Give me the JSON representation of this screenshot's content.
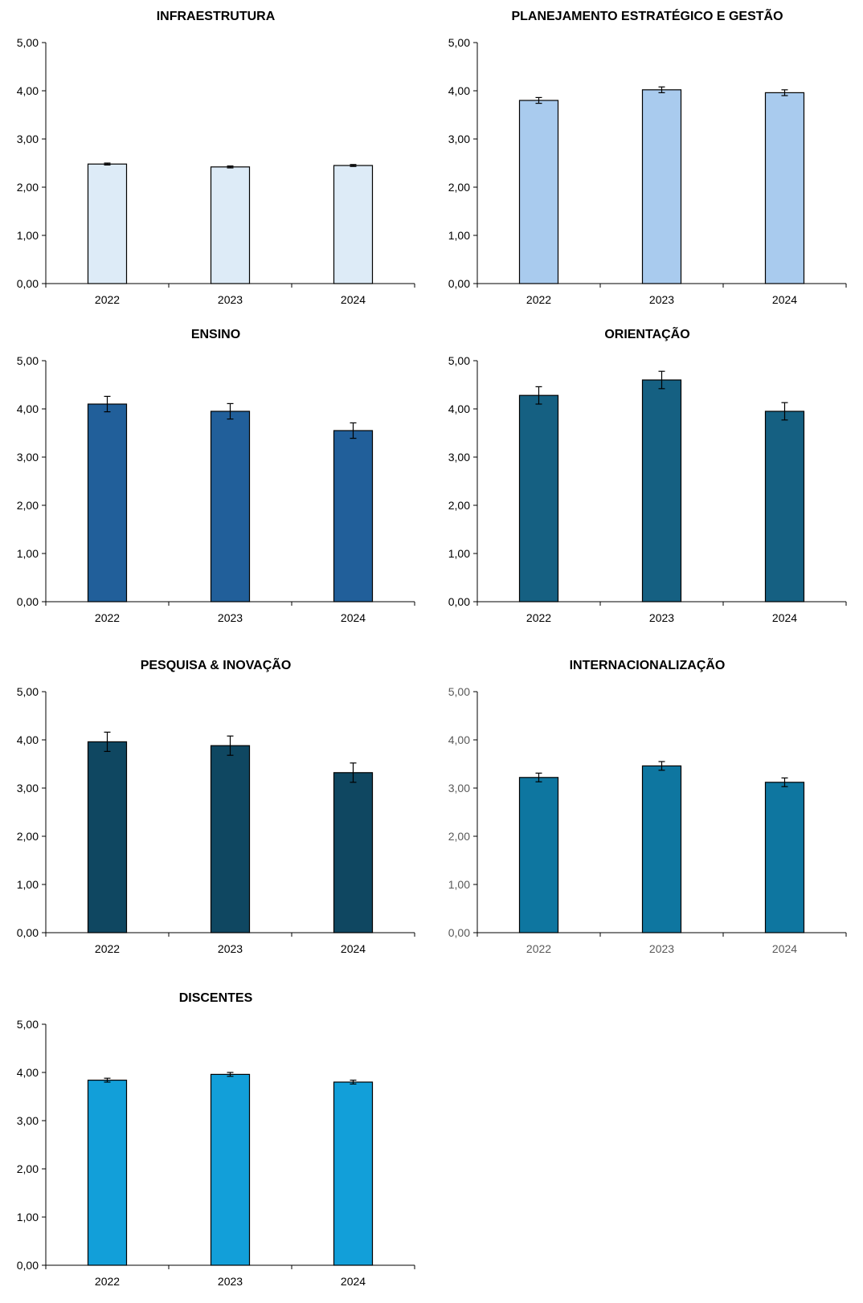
{
  "chart_data": [
    {
      "type": "bar",
      "title": "INFRAESTRUTURA",
      "categories": [
        "2022",
        "2023",
        "2024"
      ],
      "values": [
        2.48,
        2.42,
        2.45
      ],
      "errors": [
        0.02,
        0.02,
        0.02
      ],
      "ylim": [
        0,
        5
      ],
      "yticks": [
        "0,00",
        "1,00",
        "2,00",
        "3,00",
        "4,00",
        "5,00"
      ],
      "bar_color": "#DDEBF7",
      "tick_label_color": "#000000",
      "xlabel": "",
      "ylabel": "",
      "grid": false,
      "legend": "none"
    },
    {
      "type": "bar",
      "title": "PLANEJAMENTO ESTRATÉGICO E GESTÃO",
      "categories": [
        "2022",
        "2023",
        "2024"
      ],
      "values": [
        3.8,
        4.02,
        3.96
      ],
      "errors": [
        0.06,
        0.06,
        0.06
      ],
      "ylim": [
        0,
        5
      ],
      "yticks": [
        "0,00",
        "1,00",
        "2,00",
        "3,00",
        "4,00",
        "5,00"
      ],
      "bar_color": "#A9CBEE",
      "tick_label_color": "#000000",
      "xlabel": "",
      "ylabel": "",
      "grid": false,
      "legend": "none"
    },
    {
      "type": "bar",
      "title": "ENSINO",
      "categories": [
        "2022",
        "2023",
        "2024"
      ],
      "values": [
        4.1,
        3.95,
        3.55
      ],
      "errors": [
        0.16,
        0.16,
        0.16
      ],
      "ylim": [
        0,
        5
      ],
      "yticks": [
        "0,00",
        "1,00",
        "2,00",
        "3,00",
        "4,00",
        "5,00"
      ],
      "bar_color": "#215F9A",
      "tick_label_color": "#000000",
      "xlabel": "",
      "ylabel": "",
      "grid": false,
      "legend": "none"
    },
    {
      "type": "bar",
      "title": "ORIENTAÇÃO",
      "categories": [
        "2022",
        "2023",
        "2024"
      ],
      "values": [
        4.28,
        4.6,
        3.95
      ],
      "errors": [
        0.18,
        0.18,
        0.18
      ],
      "ylim": [
        0,
        5
      ],
      "yticks": [
        "0,00",
        "1,00",
        "2,00",
        "3,00",
        "4,00",
        "5,00"
      ],
      "bar_color": "#156082",
      "tick_label_color": "#000000",
      "xlabel": "",
      "ylabel": "",
      "grid": false,
      "legend": "none"
    },
    {
      "type": "bar",
      "title": "PESQUISA & INOVAÇÃO",
      "categories": [
        "2022",
        "2023",
        "2024"
      ],
      "values": [
        3.96,
        3.88,
        3.32
      ],
      "errors": [
        0.2,
        0.2,
        0.2
      ],
      "ylim": [
        0,
        5
      ],
      "yticks": [
        "0,00",
        "1,00",
        "2,00",
        "3,00",
        "4,00",
        "5,00"
      ],
      "bar_color": "#0F4761",
      "tick_label_color": "#000000",
      "xlabel": "",
      "ylabel": "",
      "grid": false,
      "legend": "none"
    },
    {
      "type": "bar",
      "title": "INTERNACIONALIZAÇÃO",
      "categories": [
        "2022",
        "2023",
        "2024"
      ],
      "values": [
        3.22,
        3.46,
        3.12
      ],
      "errors": [
        0.09,
        0.09,
        0.09
      ],
      "ylim": [
        0,
        5
      ],
      "yticks": [
        "0,00",
        "1,00",
        "2,00",
        "3,00",
        "4,00",
        "5,00"
      ],
      "bar_color": "#0E76A0",
      "tick_label_color": "#595959",
      "xlabel": "",
      "ylabel": "",
      "grid": false,
      "legend": "none"
    },
    {
      "type": "bar",
      "title": "DISCENTES",
      "categories": [
        "2022",
        "2023",
        "2024"
      ],
      "values": [
        3.84,
        3.96,
        3.8
      ],
      "errors": [
        0.04,
        0.04,
        0.04
      ],
      "ylim": [
        0,
        5
      ],
      "yticks": [
        "0,00",
        "1,00",
        "2,00",
        "3,00",
        "4,00",
        "5,00"
      ],
      "bar_color": "#129FD9",
      "tick_label_color": "#000000",
      "xlabel": "",
      "ylabel": "",
      "grid": false,
      "legend": "none"
    }
  ]
}
